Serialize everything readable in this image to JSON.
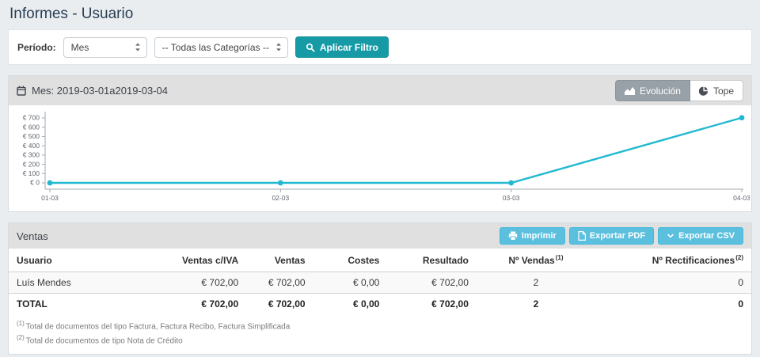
{
  "page": {
    "title": "Informes - Usuario"
  },
  "filter": {
    "period_label": "Período:",
    "period_value": "Mes",
    "category_value": "-- Todas las Categorías --",
    "apply_label": "Aplicar Filtro"
  },
  "chart_card": {
    "title": "Mes: 2019-03-01a2019-03-04",
    "evolucion_label": "Evolución",
    "tope_label": "Tope"
  },
  "chart_data": {
    "type": "line",
    "title": "",
    "x": [
      "01-03",
      "02-03",
      "03-03",
      "04-03"
    ],
    "series": [
      {
        "name": "Ventas",
        "values": [
          0,
          0,
          0,
          702
        ]
      }
    ],
    "ylim": [
      0,
      700
    ],
    "yticks": [
      {
        "v": 700,
        "label": "€ 700"
      },
      {
        "v": 600,
        "label": "€ 600"
      },
      {
        "v": 500,
        "label": "€ 500"
      },
      {
        "v": 400,
        "label": "€ 400"
      },
      {
        "v": 300,
        "label": "€ 300"
      },
      {
        "v": 200,
        "label": "€ 200"
      },
      {
        "v": 100,
        "label": "€ 100"
      },
      {
        "v": 0,
        "label": "€ 0"
      }
    ],
    "line_color": "#21b9d1",
    "axis_color": "#a3a9af",
    "tick_text_color": "#5f6570",
    "grid": false,
    "legend": "none"
  },
  "ventas": {
    "title": "Ventas",
    "buttons": {
      "print": "Imprimir",
      "pdf": "Exportar PDF",
      "csv": "Exportar CSV"
    },
    "columns": [
      "Usuario",
      "Ventas c/IVA",
      "Ventas",
      "Costes",
      "Resultado",
      "Nº Vendas",
      "Nº Rectificaciones"
    ],
    "col_sups": [
      "",
      "",
      "",
      "",
      "",
      "(1)",
      "(2)"
    ],
    "rows": [
      {
        "usuario": "Luís Mendes",
        "ventas_civa": "€ 702,00",
        "ventas": "€ 702,00",
        "costes": "€ 0,00",
        "resultado": "€ 702,00",
        "n_vendas": "2",
        "n_rect": "0"
      }
    ],
    "total": {
      "usuario": "TOTAL",
      "ventas_civa": "€ 702,00",
      "ventas": "€ 702,00",
      "costes": "€ 0,00",
      "resultado": "€ 702,00",
      "n_vendas": "2",
      "n_rect": "0"
    },
    "footnotes": [
      {
        "sup": "(1)",
        "text": "Total de documentos del tipo Factura, Factura Recibo, Factura Simplificada"
      },
      {
        "sup": "(2)",
        "text": "Total de documentos de tipo Nota de Crédito"
      }
    ]
  },
  "colors": {
    "accent_teal": "#169ba6",
    "info_blue": "#5bc0de",
    "line_cyan": "#21b9d1",
    "header_gray": "#e0e0e0"
  }
}
